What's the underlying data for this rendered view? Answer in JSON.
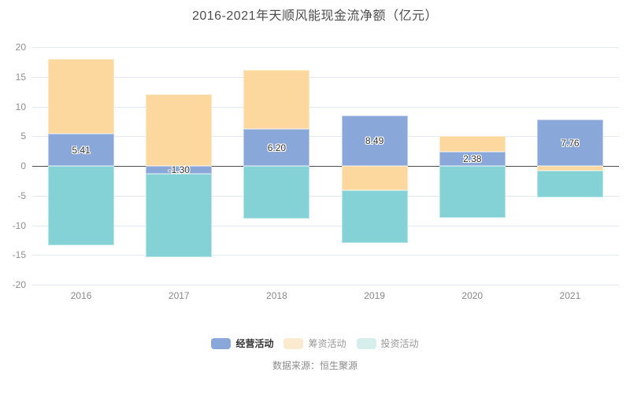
{
  "title": "2016-2021年天顺风能现金流净额（亿元）",
  "source": "数据来源：恒生聚源",
  "colors": {
    "operating_blue": "#89a7d8",
    "financing_orange": "#fcd89e",
    "investing_teal": "#85d2d6",
    "legend_muted_orange": "#fbeacf",
    "legend_muted_teal": "#d6eeec",
    "gridline": "#e2e9f2",
    "zero_axis": "#4d4d4d",
    "tick_label": "#8f8f8f",
    "value_label": "#333333"
  },
  "legend": {
    "items": [
      {
        "label": "经营活动",
        "swatch_color": "#89a7d8",
        "text_color": "#333333",
        "emphasis": true
      },
      {
        "label": "筹资活动",
        "swatch_color": "#fbeacf",
        "text_color": "#999999",
        "emphasis": false
      },
      {
        "label": "投资活动",
        "swatch_color": "#d6eeec",
        "text_color": "#999999",
        "emphasis": false
      }
    ]
  },
  "axis": {
    "yticks": [
      "20",
      "15",
      "10",
      "5",
      "0",
      "-5",
      "-10",
      "-15",
      "-20"
    ]
  },
  "chart_data": {
    "type": "bar",
    "stacked": true,
    "title": "2016-2021年天顺风能现金流净额（亿元）",
    "categories": [
      "2016",
      "2017",
      "2018",
      "2019",
      "2020",
      "2021"
    ],
    "series": [
      {
        "name": "经营活动",
        "color": "#89a7d8",
        "values": [
          5.41,
          -1.3,
          6.2,
          8.49,
          2.38,
          7.76
        ],
        "labels": [
          "5.41",
          "-1.30",
          "6.20",
          "8.49",
          "2.38",
          "7.76"
        ]
      },
      {
        "name": "筹资活动",
        "color": "#fcd89e",
        "values": [
          12.6,
          12.0,
          10.0,
          -4.1,
          2.6,
          -0.8
        ]
      },
      {
        "name": "投资活动",
        "color": "#85d2d6",
        "values": [
          -13.4,
          -14.1,
          -8.9,
          -8.9,
          -8.7,
          -4.5
        ]
      }
    ],
    "ylim": [
      -20,
      20
    ],
    "ytick_interval": 5,
    "grid": true,
    "legend_position": "bottom",
    "value_labels_on_series": "经营活动"
  }
}
